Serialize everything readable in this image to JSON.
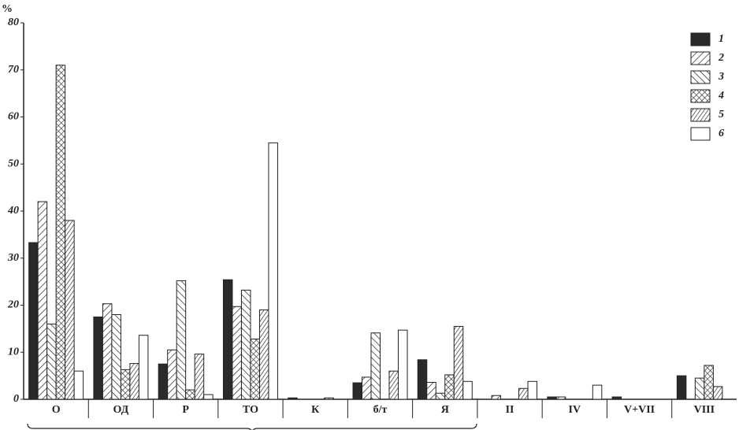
{
  "chart_data": {
    "type": "bar",
    "y_label": "%",
    "categories": [
      "О",
      "ОД",
      "Р",
      "ТО",
      "К",
      "б/т",
      "Я",
      "II",
      "IV",
      "V+VII",
      "VIII"
    ],
    "series": [
      {
        "name": "1",
        "color": "#2a2a2a",
        "hatch": "none",
        "values": [
          33.3,
          17.5,
          7.5,
          25.4,
          0.3,
          3.5,
          8.4,
          0,
          0.5,
          0.5,
          5
        ]
      },
      {
        "name": "2",
        "color": "#ffffff",
        "hatch": "forward",
        "values": [
          42,
          20.3,
          10.5,
          19.7,
          0,
          4.7,
          3.6,
          0.8,
          0.5,
          0,
          0
        ]
      },
      {
        "name": "3",
        "color": "#ffffff",
        "hatch": "backward",
        "values": [
          16,
          18,
          25.2,
          23.2,
          0,
          14.1,
          1.3,
          0,
          0,
          0,
          4.5
        ]
      },
      {
        "name": "4",
        "color": "#ffffff",
        "hatch": "cross",
        "values": [
          71,
          6.3,
          2,
          12.8,
          0,
          0,
          5.2,
          0,
          0,
          0,
          7.2
        ]
      },
      {
        "name": "5",
        "color": "#ffffff",
        "hatch": "forward-dense",
        "values": [
          38,
          7.6,
          9.6,
          19,
          0.3,
          6,
          15.5,
          2.3,
          0,
          0,
          2.7
        ]
      },
      {
        "name": "6",
        "color": "#ffffff",
        "hatch": "none",
        "values": [
          6,
          13.6,
          1,
          54.5,
          0,
          14.7,
          3.8,
          3.8,
          3,
          0,
          0
        ]
      }
    ],
    "ylim": [
      0,
      80
    ],
    "yticks": [
      0,
      10,
      20,
      30,
      40,
      50,
      60,
      70,
      80
    ],
    "legend": "top-right"
  }
}
